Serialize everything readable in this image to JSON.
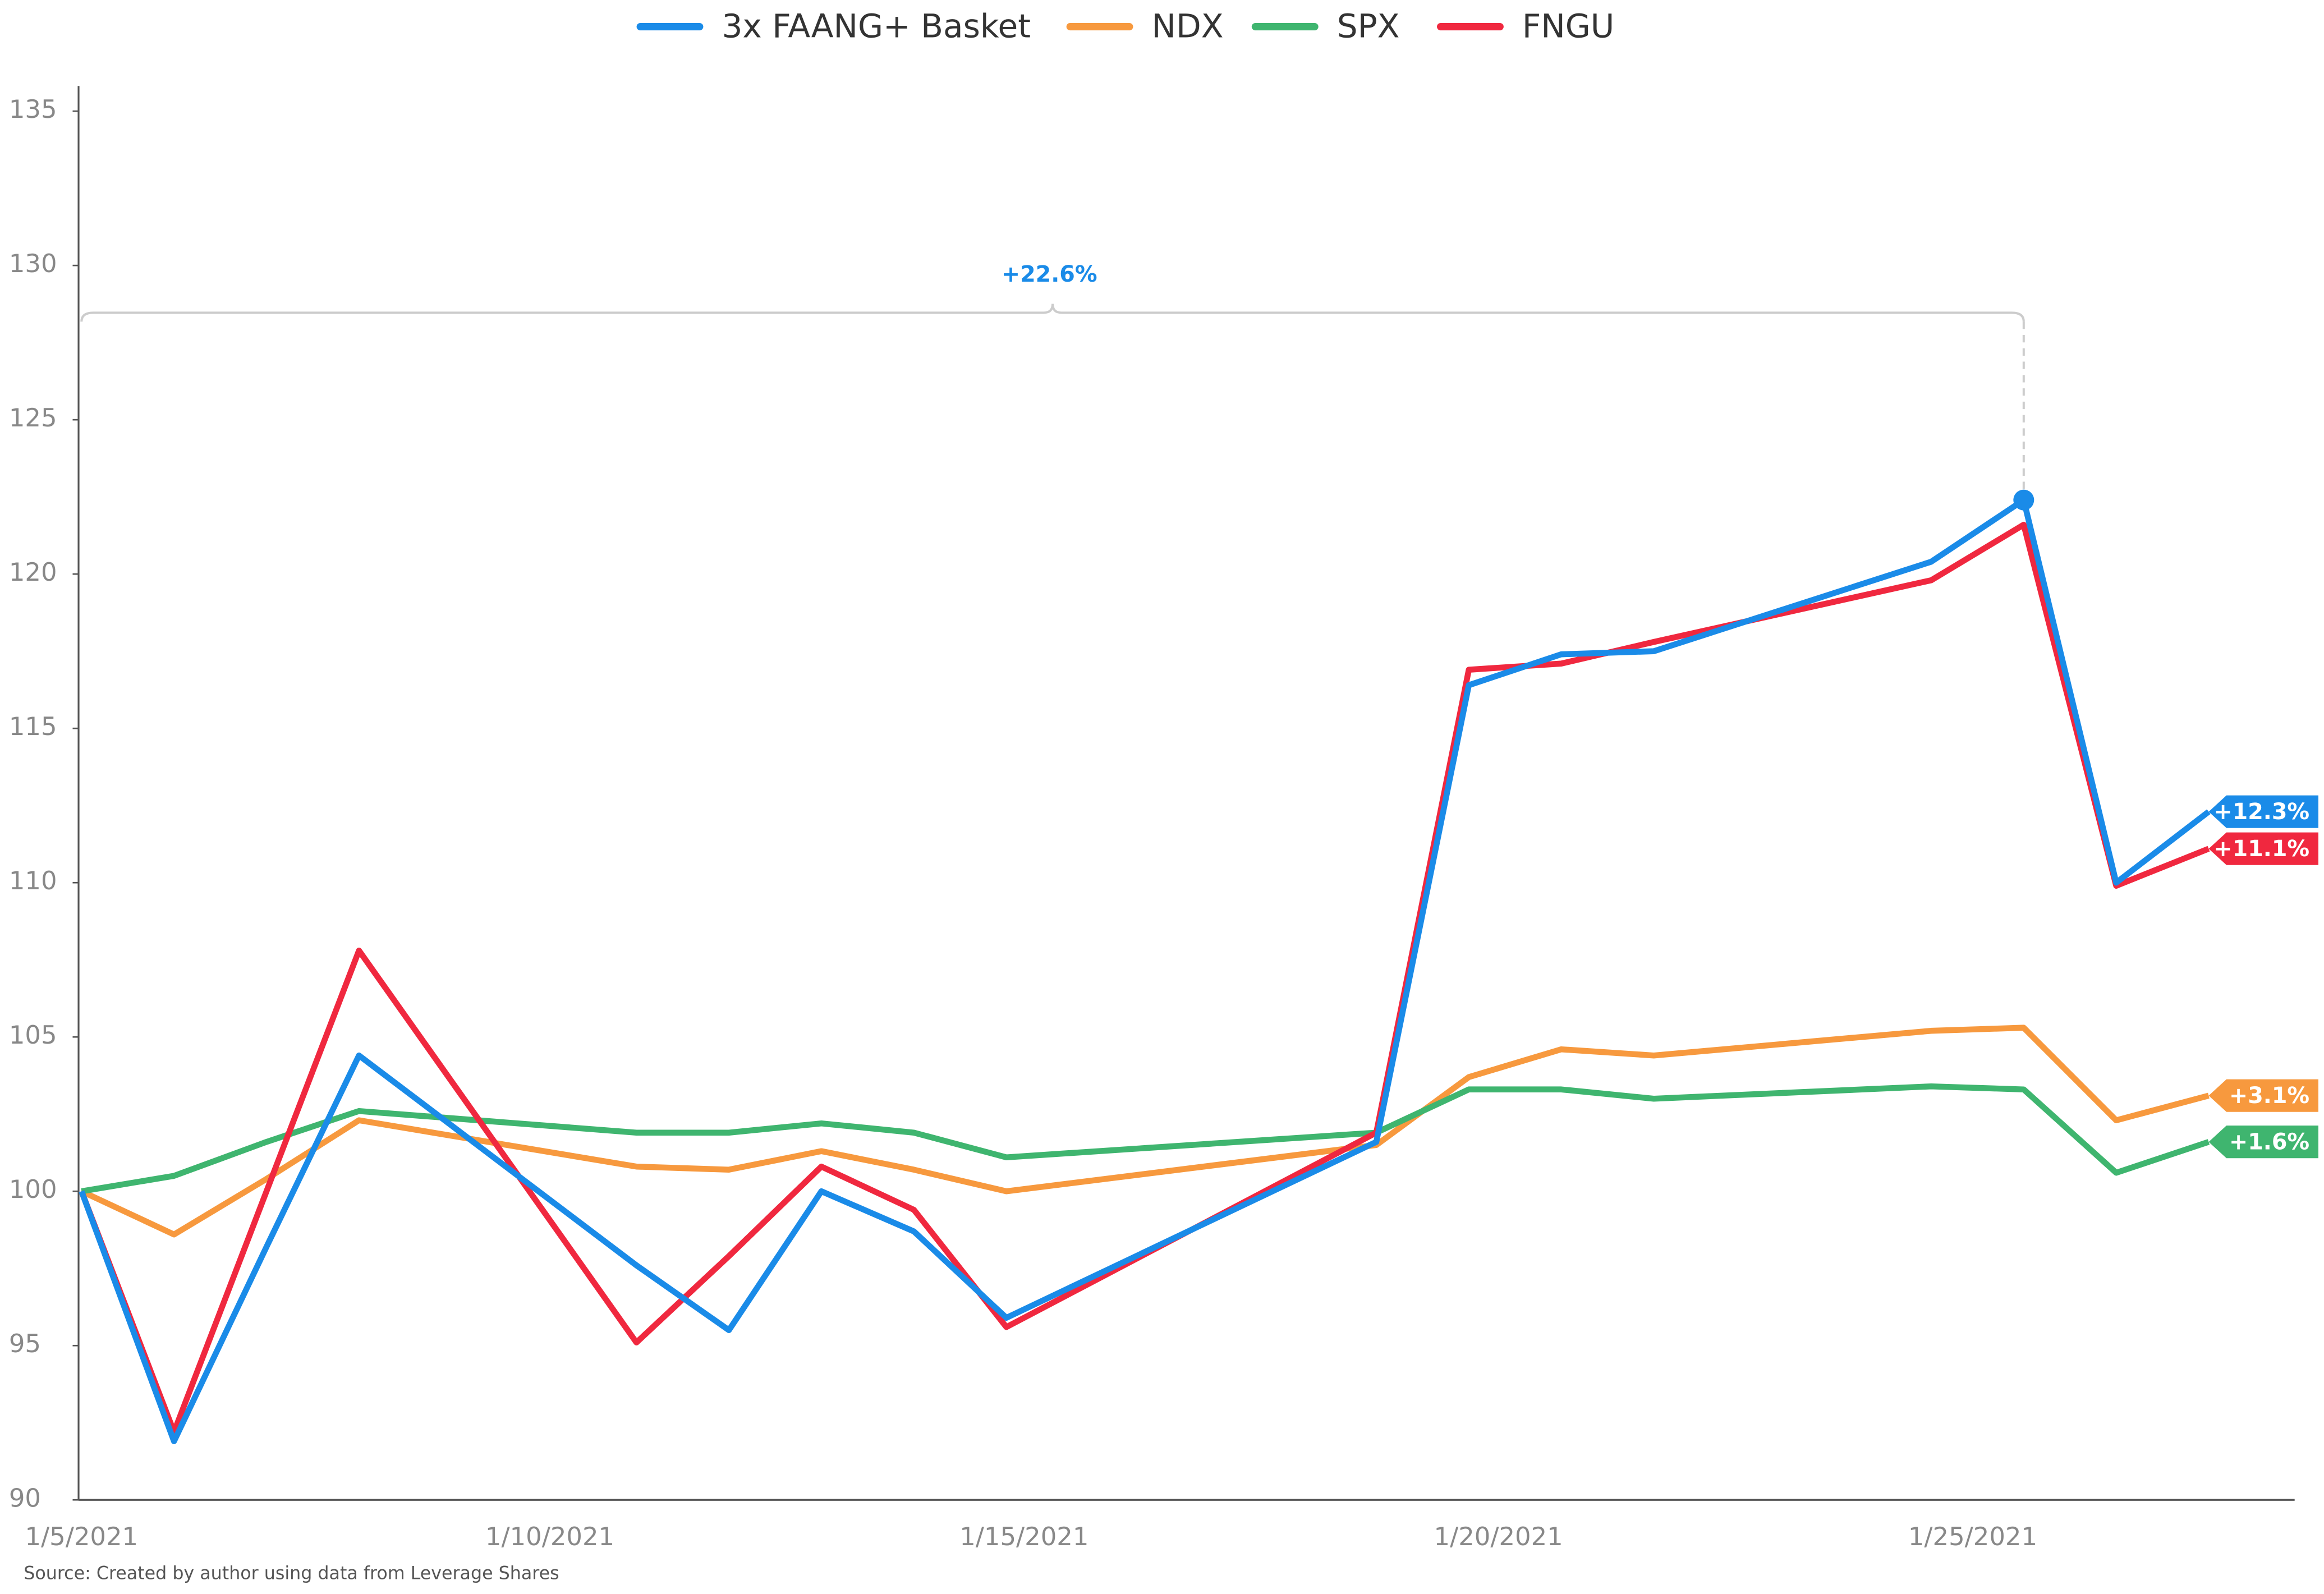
{
  "chart_data": {
    "type": "line",
    "x": [
      "1/5/2021",
      "1/6/2021",
      "1/7/2021",
      "1/8/2021",
      "1/11/2021",
      "1/12/2021",
      "1/13/2021",
      "1/14/2021",
      "1/15/2021",
      "1/19/2021",
      "1/20/2021",
      "1/21/2021",
      "1/22/2021",
      "1/25/2021",
      "1/26/2021",
      "1/27/2021",
      "1/28/2021"
    ],
    "series": [
      {
        "name": "3x FAANG+ Basket",
        "color": "#1a8be8",
        "end_label": "+12.3%",
        "values": [
          100,
          91.9,
          98.2,
          104.4,
          97.6,
          95.5,
          100.0,
          98.7,
          95.9,
          101.6,
          116.4,
          117.4,
          117.5,
          120.4,
          122.4,
          110.0,
          112.3
        ]
      },
      {
        "name": "NDX",
        "color": "#f7993e",
        "end_label": "+3.1%",
        "values": [
          100,
          98.6,
          100.4,
          102.3,
          100.8,
          100.7,
          101.3,
          100.7,
          100.0,
          101.5,
          103.7,
          104.6,
          104.4,
          105.2,
          105.3,
          102.3,
          103.1
        ]
      },
      {
        "name": "SPX",
        "color": "#3fb56f",
        "end_label": "+1.6%",
        "values": [
          100,
          100.5,
          101.6,
          102.6,
          101.9,
          101.9,
          102.2,
          101.9,
          101.1,
          101.9,
          103.3,
          103.3,
          103.0,
          103.4,
          103.3,
          100.6,
          101.6
        ]
      },
      {
        "name": "FNGU",
        "color": "#f0283f",
        "end_label": "+11.1%",
        "values": [
          100,
          92.2,
          100.0,
          107.8,
          95.1,
          97.9,
          100.8,
          99.4,
          95.6,
          101.9,
          116.9,
          117.1,
          117.8,
          119.8,
          121.6,
          109.9,
          111.1
        ]
      }
    ],
    "ylim": [
      90,
      135
    ],
    "yticks": [
      90,
      95,
      100,
      105,
      110,
      115,
      120,
      125,
      130,
      135
    ],
    "xlim": [
      "1/5/2021",
      "1/28/2021"
    ],
    "xticks": [
      "1/5/2021",
      "1/10/2021",
      "1/15/2021",
      "1/20/2021",
      "1/25/2021"
    ],
    "annotation": "+22.6%",
    "source": "Source: Created by author using data from Leverage Shares"
  }
}
